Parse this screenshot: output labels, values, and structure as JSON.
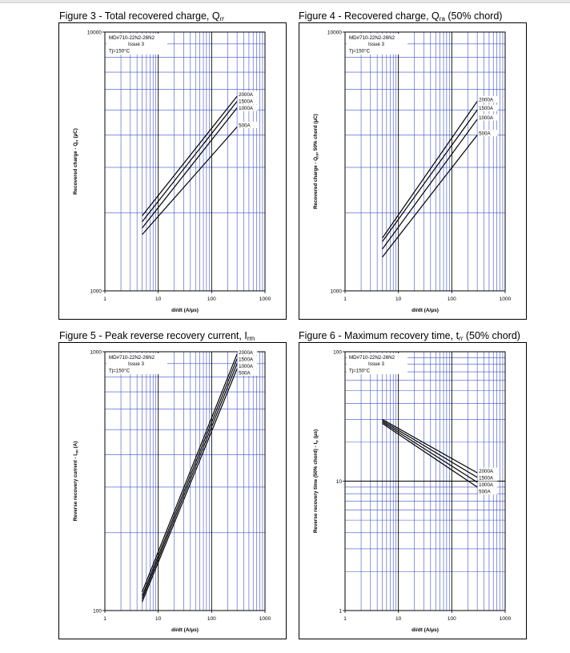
{
  "chart_data": [
    {
      "type": "line",
      "title_text": "Figure 3 - Total recovered charge, Q",
      "title_sub": "rr",
      "title_sub_style": "italic",
      "title_suffix": "",
      "ylabel_text": "Recovered charge - Q",
      "ylabel_sub": "rr",
      "ylabel_suffix": " (µC)",
      "xlabel": "di/dt (A/µs)",
      "xscale": "log",
      "yscale": "log",
      "xlim": [
        1,
        1000
      ],
      "ylim": [
        1000,
        10000
      ],
      "x_ticks": [
        "1",
        "10",
        "100",
        "1000"
      ],
      "y_ticks": [
        "1000",
        "10000"
      ],
      "annotation": [
        "MD#710-22N2-26N2",
        "Issue 3",
        "Tj=150°C"
      ],
      "series": [
        {
          "name": "2000A",
          "x": [
            5,
            300
          ],
          "y": [
            1950,
            5650
          ]
        },
        {
          "name": "1500A",
          "x": [
            5,
            300
          ],
          "y": [
            1850,
            5400
          ]
        },
        {
          "name": "1000A",
          "x": [
            5,
            300
          ],
          "y": [
            1750,
            5100
          ]
        },
        {
          "name": "500A",
          "x": [
            5,
            300
          ],
          "y": [
            1650,
            4300
          ]
        }
      ],
      "legend": [
        "2000A",
        "1500A",
        "1000A",
        "500A"
      ]
    },
    {
      "type": "line",
      "title_text": "Figure 4 - Recovered charge, Q",
      "title_sub": "ra",
      "title_sub_style": "normal",
      "title_suffix": " (50% chord)",
      "ylabel_text": "Recovered charge - Q",
      "ylabel_sub": "ra",
      "ylabel_suffix": ", 50% chord (µC)",
      "xlabel": "di/dt (A/µs)",
      "xscale": "log",
      "yscale": "log",
      "xlim": [
        1,
        1000
      ],
      "ylim": [
        1000,
        10000
      ],
      "x_ticks": [
        "1",
        "10",
        "100",
        "1000"
      ],
      "y_ticks": [
        "1000",
        "10000"
      ],
      "annotation": [
        "MD#710-22N2-26N2",
        "Issue 3",
        "Tj=150°C"
      ],
      "series": [
        {
          "name": "2000A",
          "x": [
            5,
            300
          ],
          "y": [
            1600,
            5400
          ]
        },
        {
          "name": "1500A",
          "x": [
            5,
            300
          ],
          "y": [
            1550,
            5000
          ]
        },
        {
          "name": "1000A",
          "x": [
            5,
            300
          ],
          "y": [
            1450,
            4600
          ]
        },
        {
          "name": "500A",
          "x": [
            5,
            300
          ],
          "y": [
            1350,
            4000
          ]
        }
      ],
      "legend": [
        "2000A",
        "1500A",
        "1000A",
        "500A"
      ]
    },
    {
      "type": "line",
      "title_text": "Figure 5 - Peak reverse recovery current, I",
      "title_sub": "rm",
      "title_sub_style": "normal",
      "title_suffix": "",
      "ylabel_text": "Reverse recovery current - I",
      "ylabel_sub": "rm",
      "ylabel_suffix": " (A)",
      "xlabel": "di/dt (A/µs)",
      "xscale": "log",
      "yscale": "log",
      "xlim": [
        1,
        1000
      ],
      "ylim": [
        100,
        1000
      ],
      "x_ticks": [
        "1",
        "10",
        "100",
        "1000"
      ],
      "y_ticks": [
        "100",
        "1000"
      ],
      "annotation": [
        "MD#710-22N2-26N2",
        "Issue 3",
        "Tj=150°C"
      ],
      "series": [
        {
          "name": "2000A",
          "x": [
            5,
            300
          ],
          "y": [
            118,
            980
          ]
        },
        {
          "name": "1500A",
          "x": [
            5,
            300
          ],
          "y": [
            114,
            940
          ]
        },
        {
          "name": "1000A",
          "x": [
            5,
            300
          ],
          "y": [
            111,
            900
          ]
        },
        {
          "name": "500A",
          "x": [
            5,
            300
          ],
          "y": [
            108,
            860
          ]
        }
      ],
      "legend": [
        "2000A",
        "1500A",
        "1000A",
        "500A"
      ]
    },
    {
      "type": "line",
      "title_text": "Figure 6 - Maximum recovery time, t",
      "title_sub": "rr",
      "title_sub_style": "italic",
      "title_suffix": " (50% chord)",
      "ylabel_text": "Reverse recovery time (50% chord) - t",
      "ylabel_sub": "rr",
      "ylabel_suffix": " (µs)",
      "xlabel": "di/dt (A/µs)",
      "xscale": "log",
      "yscale": "log",
      "xlim": [
        1,
        1000
      ],
      "ylim": [
        1,
        100
      ],
      "x_ticks": [
        "1",
        "10",
        "100",
        "1000"
      ],
      "y_ticks": [
        "1",
        "10",
        "100"
      ],
      "annotation": [
        "MD#710-22N2-26N2",
        "Issue 3",
        "Tj=150°C"
      ],
      "series": [
        {
          "name": "2000A",
          "x": [
            5,
            300
          ],
          "y": [
            30,
            11.6
          ]
        },
        {
          "name": "1500A",
          "x": [
            5,
            300
          ],
          "y": [
            29.3,
            10.7
          ]
        },
        {
          "name": "1000A",
          "x": [
            5,
            300
          ],
          "y": [
            28.6,
            9.8
          ]
        },
        {
          "name": "500A",
          "x": [
            5,
            300
          ],
          "y": [
            27.9,
            9.0
          ]
        }
      ],
      "legend": [
        "2000A",
        "1500A",
        "1000A",
        "500A"
      ]
    }
  ]
}
